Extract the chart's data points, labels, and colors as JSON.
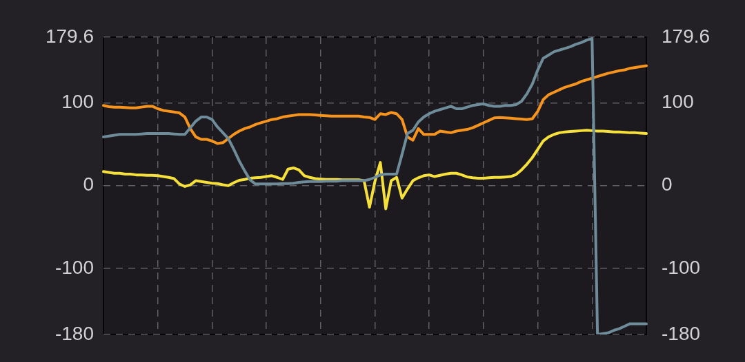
{
  "chart_data": {
    "type": "line",
    "categories": [
      null,
      null,
      null,
      null,
      null,
      null,
      null,
      null,
      null,
      null,
      null,
      null,
      null,
      null,
      null,
      null,
      null,
      null,
      null,
      null,
      null,
      null,
      null,
      null,
      null,
      null,
      null,
      null,
      null,
      null,
      null,
      null,
      null,
      null,
      null,
      null,
      null,
      null,
      null,
      null,
      null,
      null,
      null,
      null,
      null,
      null,
      null,
      null,
      null,
      null,
      null,
      null,
      null,
      null,
      null,
      null,
      null,
      null,
      null,
      null,
      null,
      null,
      null,
      null,
      null,
      null,
      null,
      null,
      null,
      null,
      null,
      null,
      null,
      null,
      null,
      null,
      null,
      null,
      null,
      null,
      null,
      null,
      null,
      null,
      null,
      null,
      null,
      null,
      null,
      null,
      null,
      null,
      null,
      null,
      null,
      null,
      null,
      null,
      null,
      null,
      null
    ],
    "ylim": [
      -180,
      179.6
    ],
    "yticks": [
      -180,
      -100,
      0,
      100,
      179.6
    ],
    "y2lim": [
      -180,
      179.6
    ],
    "y2ticks": [
      -180,
      -100,
      0,
      100,
      179.6
    ],
    "tick_labels": "y",
    "grid": true,
    "legend": false,
    "marker": "none",
    "line_style": "solid",
    "series": [
      {
        "color": "#6e8c99",
        "values": [
          59,
          60,
          61,
          62,
          62,
          62,
          62,
          62.5,
          63,
          63,
          63,
          63,
          63,
          62.5,
          62,
          62,
          70,
          78,
          83,
          83,
          80,
          71,
          64,
          57,
          44,
          30,
          18,
          7,
          2,
          2,
          2,
          2,
          2,
          2.5,
          2.5,
          3,
          4,
          4.5,
          5,
          5,
          5,
          5.5,
          5.5,
          5.5,
          6,
          6,
          6,
          6,
          6,
          7.5,
          10,
          13,
          14,
          14,
          14,
          38,
          63,
          67,
          77,
          83,
          87,
          90,
          92,
          94,
          96,
          93,
          93,
          95,
          97,
          98,
          99,
          97,
          96,
          96,
          97,
          97,
          98,
          102,
          111,
          123,
          140,
          154,
          158,
          162,
          164,
          166,
          168,
          171,
          173,
          176,
          178,
          -180,
          -179,
          -178,
          -175,
          -173,
          -170,
          -167,
          -167,
          -167,
          -167
        ]
      },
      {
        "color": "#f7941d",
        "values": [
          97,
          95.5,
          95,
          95,
          94.5,
          94,
          94,
          95,
          96,
          96,
          93,
          91,
          90,
          89,
          88,
          83,
          69,
          59,
          56,
          56,
          54,
          51,
          52,
          57,
          62,
          66,
          69,
          71,
          74,
          76,
          78,
          80,
          81,
          83,
          84,
          85,
          86,
          86,
          86,
          85.5,
          85,
          84.5,
          84,
          84,
          84,
          84,
          84,
          84,
          83,
          82.5,
          80,
          87,
          86,
          88.5,
          87,
          80,
          59,
          55,
          69,
          62,
          62,
          62,
          66,
          65,
          64,
          66,
          67,
          68,
          70,
          73,
          76,
          79,
          82,
          82.5,
          82,
          81.5,
          81,
          80.5,
          80,
          81,
          90,
          104,
          110,
          113,
          116,
          119,
          121,
          123,
          126,
          128,
          130,
          132,
          134,
          136,
          137.5,
          139,
          140,
          142,
          143,
          144,
          145
        ]
      },
      {
        "color": "#f5e03c",
        "values": [
          17,
          16,
          15,
          15,
          14,
          14,
          13,
          13,
          12.5,
          12.5,
          12,
          11,
          10,
          8.5,
          2,
          -1,
          1,
          6,
          5,
          4,
          3,
          2.5,
          1,
          0,
          3.5,
          6.5,
          7.5,
          9,
          9.5,
          10,
          11,
          12,
          10,
          7.5,
          20,
          21.5,
          19,
          12,
          10,
          8.5,
          8,
          7.5,
          7.5,
          7.5,
          7,
          7,
          7,
          7,
          6,
          -26,
          5,
          28,
          -28,
          6,
          10,
          -15,
          -4,
          6,
          9.5,
          12,
          13,
          11,
          12.5,
          14,
          15,
          15,
          13,
          10.5,
          9.5,
          9,
          9,
          9.5,
          10,
          10,
          10.5,
          11,
          13.5,
          19,
          26,
          34,
          44,
          54,
          59,
          62,
          64,
          65,
          65.5,
          66,
          66.5,
          67,
          66.5,
          66,
          66,
          65.5,
          65,
          65,
          64.5,
          64,
          64,
          63.5,
          63
        ]
      }
    ]
  }
}
